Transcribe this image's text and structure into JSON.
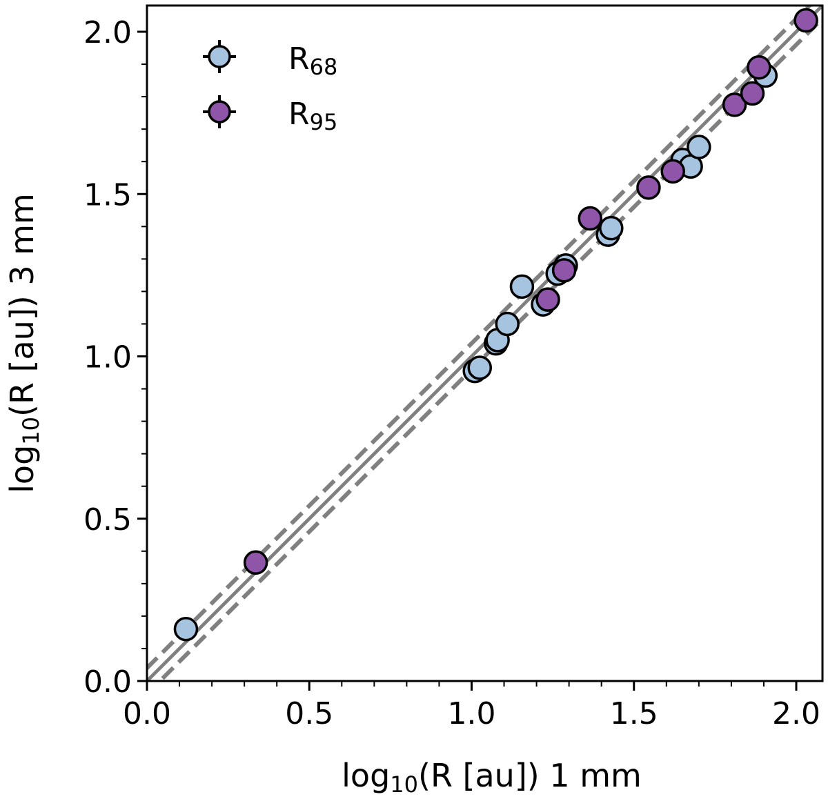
{
  "chart_data": {
    "type": "scatter",
    "xlabel": {
      "prefix": "log",
      "sub": "10",
      "suffix": "(R [au]) 1 mm"
    },
    "ylabel": {
      "prefix": "log",
      "sub": "10",
      "suffix": "(R [au]) 3 mm"
    },
    "xlim": [
      0.0,
      2.08
    ],
    "ylim": [
      0.0,
      2.08
    ],
    "xticks": [
      "0.0",
      "0.5",
      "1.0",
      "1.5",
      "2.0"
    ],
    "yticks": [
      "0.0",
      "0.5",
      "1.0",
      "1.5",
      "2.0"
    ],
    "grid": false,
    "legend_position": "top-left",
    "reference_lines": [
      {
        "name": "one-to-one",
        "style": "solid",
        "intercept": 0.0,
        "slope": 1,
        "color": "#808080"
      },
      {
        "name": "upper-offset",
        "style": "dashed",
        "intercept": 0.04,
        "slope": 1,
        "color": "#808080"
      },
      {
        "name": "lower-offset",
        "style": "dashed",
        "intercept": -0.04,
        "slope": 1,
        "color": "#808080"
      }
    ],
    "series": [
      {
        "name": "R68",
        "label_main": "R",
        "label_sub": "68",
        "color": "#a6c4e0",
        "points": [
          [
            0.12,
            0.16
          ],
          [
            1.01,
            0.955
          ],
          [
            1.025,
            0.965
          ],
          [
            1.075,
            1.04
          ],
          [
            1.08,
            1.05
          ],
          [
            1.11,
            1.1
          ],
          [
            1.155,
            1.215
          ],
          [
            1.22,
            1.16
          ],
          [
            1.265,
            1.255
          ],
          [
            1.29,
            1.28
          ],
          [
            1.42,
            1.375
          ],
          [
            1.43,
            1.395
          ],
          [
            1.65,
            1.605
          ],
          [
            1.675,
            1.585
          ],
          [
            1.7,
            1.645
          ],
          [
            1.905,
            1.865
          ]
        ]
      },
      {
        "name": "R95",
        "label_main": "R",
        "label_sub": "95",
        "color": "#8e55a8",
        "points": [
          [
            0.335,
            0.365
          ],
          [
            1.235,
            1.175
          ],
          [
            1.285,
            1.265
          ],
          [
            1.365,
            1.425
          ],
          [
            1.545,
            1.52
          ],
          [
            1.62,
            1.57
          ],
          [
            1.81,
            1.775
          ],
          [
            1.865,
            1.81
          ],
          [
            1.885,
            1.89
          ],
          [
            2.03,
            2.035
          ]
        ]
      }
    ]
  }
}
